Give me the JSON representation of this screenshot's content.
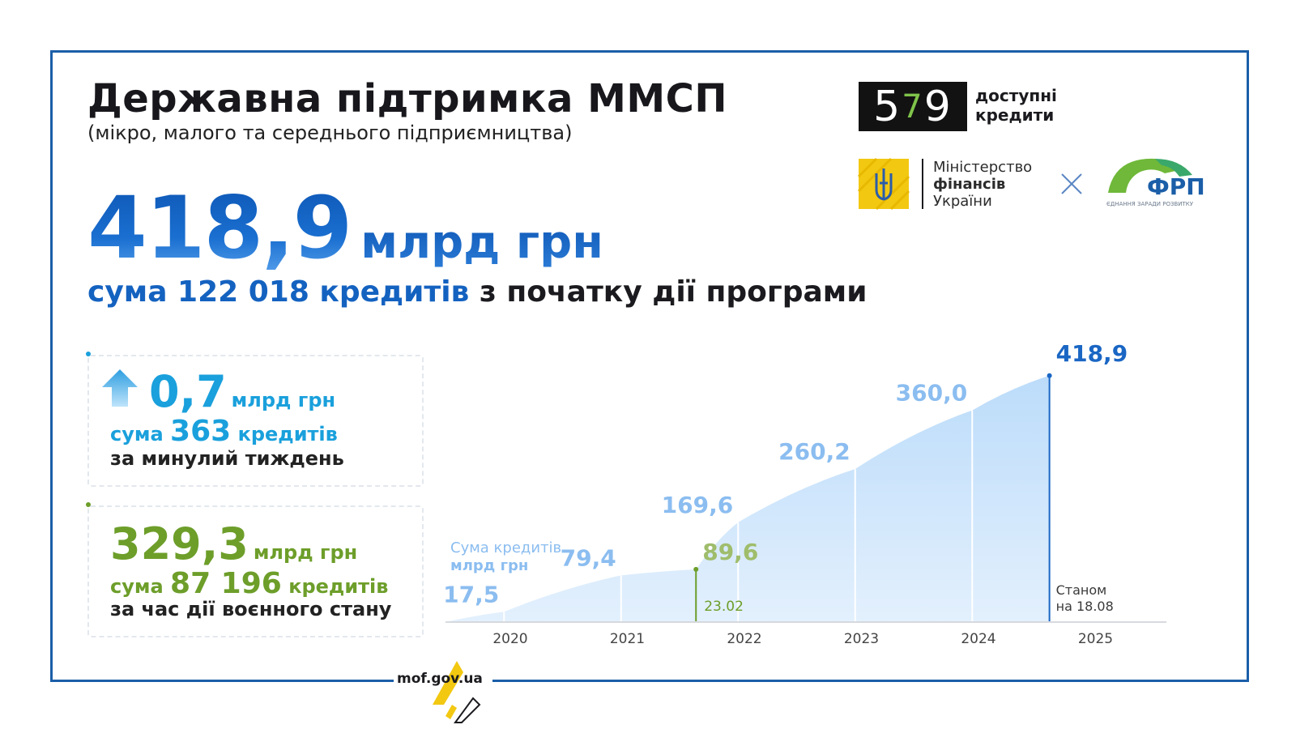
{
  "header": {
    "title": "Державна підтримка ММСП",
    "subtitle": "(мікро, малого та середнього підприємництва)"
  },
  "headline": {
    "amount": "418,9",
    "unit": "млрд грн",
    "sum_prefix": "сума 122 018 кредитів",
    "sum_suffix": "з початку дії програми"
  },
  "logos": {
    "program_digits_left": "5",
    "program_digits_mid": "7",
    "program_digits_right": "9",
    "program_line1": "доступні",
    "program_line2": "кредити",
    "ministry_line1": "Міністерство",
    "ministry_line2": "фінансів",
    "ministry_line3": "України",
    "frp_name": "ФРП",
    "frp_tagline": "ЄДНАННЯ ЗАРАДИ РОЗВИТКУ"
  },
  "weekly": {
    "amount": "0,7",
    "unit": "млрд грн",
    "count_prefix": "сума",
    "count": "363",
    "count_suffix": "кредитів",
    "period": "за минулий тиждень"
  },
  "war": {
    "amount": "329,3",
    "unit": "млрд грн",
    "count_prefix": "сума",
    "count": "87 196",
    "count_suffix": "кредитів",
    "period": "за час дії воєнного стану"
  },
  "chart_data": {
    "type": "area",
    "legend_line1": "Сума кредитів",
    "legend_line2": "млрд грн",
    "categories": [
      "2020",
      "2021",
      "2022",
      "2023",
      "2024",
      "2025"
    ],
    "points": [
      {
        "x": 2020.0,
        "y": 0,
        "label": ""
      },
      {
        "x": 2020.5,
        "y": 17.5,
        "label": "17,5"
      },
      {
        "x": 2021.5,
        "y": 79.4,
        "label": "79,4"
      },
      {
        "x": 2022.14,
        "y": 89.6,
        "label": "89,6"
      },
      {
        "x": 2022.5,
        "y": 169.6,
        "label": "169,6"
      },
      {
        "x": 2023.5,
        "y": 260.2,
        "label": "260,2"
      },
      {
        "x": 2024.5,
        "y": 360.0,
        "label": "360,0"
      },
      {
        "x": 2025.16,
        "y": 418.9,
        "label": "418,9"
      }
    ],
    "marker_label": "23.02",
    "note_line1": "Станом",
    "note_line2": "на 18.08",
    "ylim": [
      0,
      420
    ],
    "colors": {
      "area": "#c6e0fb",
      "label": "#8bbdf0",
      "last": "#1a66c4",
      "war": "#9fbd6b",
      "war_line": "#6d9e2a"
    }
  },
  "footer": {
    "site": "mof.gov.ua"
  }
}
